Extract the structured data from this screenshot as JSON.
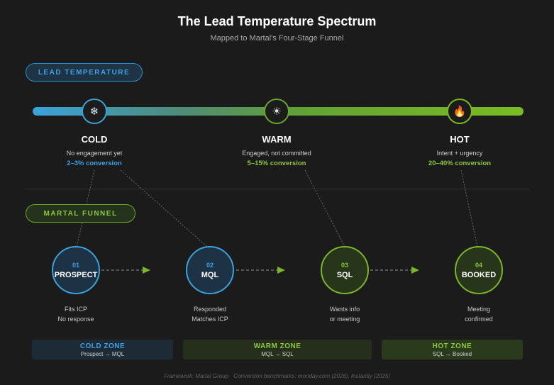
{
  "header": {
    "title": "The Lead Temperature Spectrum",
    "subtitle": "Mapped to Martal's Four-Stage Funnel"
  },
  "temperature": {
    "label": "LEAD TEMPERATURE",
    "stages": [
      {
        "name": "COLD",
        "icon": "snowflake-icon",
        "glyph": "❄",
        "description": "No engagement yet",
        "conversion": "2–3% conversion",
        "color": "#3ea2e6"
      },
      {
        "name": "WARM",
        "icon": "sun-icon",
        "glyph": "☀",
        "description": "Engaged, not committed",
        "conversion": "5–15% conversion",
        "color": "#8cc73a"
      },
      {
        "name": "HOT",
        "icon": "fire-icon",
        "glyph": "🔥",
        "description": "Intent + urgency",
        "conversion": "20–40% conversion",
        "color": "#8cc73a"
      }
    ]
  },
  "funnel": {
    "label": "MARTAL FUNNEL",
    "stages": [
      {
        "number": "01",
        "name": "PROSPECT",
        "line1": "Fits ICP",
        "line2": "No response"
      },
      {
        "number": "02",
        "name": "MQL",
        "line1": "Responded",
        "line2": "Matches ICP"
      },
      {
        "number": "03",
        "name": "SQL",
        "line1": "Wants info",
        "line2": "or meeting"
      },
      {
        "number": "04",
        "name": "BOOKED",
        "line1": "Meeting",
        "line2": "confirmed"
      }
    ]
  },
  "zones": [
    {
      "title": "COLD ZONE",
      "range": "Prospect → MQL"
    },
    {
      "title": "WARM ZONE",
      "range": "MQL → SQL"
    },
    {
      "title": "HOT ZONE",
      "range": "SQL → Booked"
    }
  ],
  "footer": "Framework: Martal Group · Conversion benchmarks: monday.com (2026), Instantly (2025)",
  "colors": {
    "background": "#1b1b1b",
    "cold": "#3aa3d9",
    "warm": "#6aa52a",
    "hot": "#7bbb22"
  }
}
